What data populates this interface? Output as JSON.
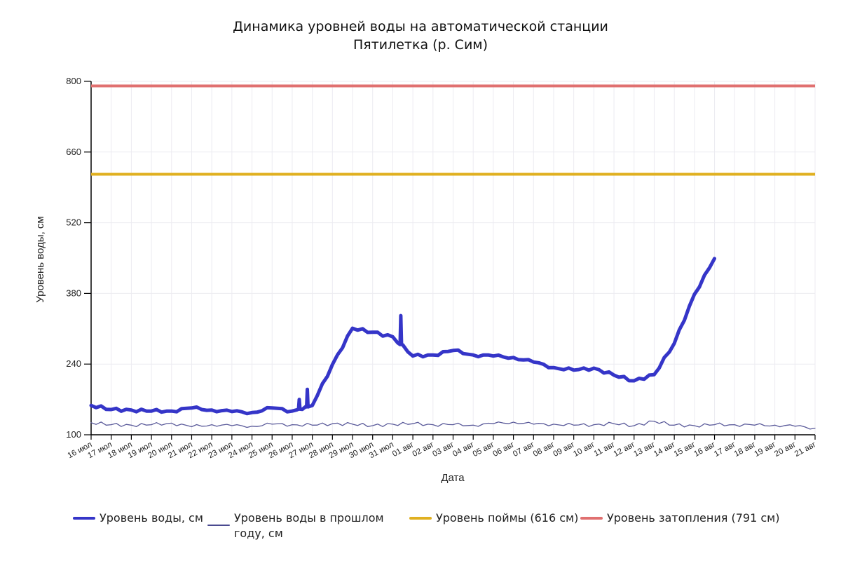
{
  "chart_data": {
    "type": "line",
    "title": "Динамика уровней воды на автоматической станции",
    "subtitle": "Пятилетка (р. Сим)",
    "xlabel": "Дата",
    "ylabel": "Уровень воды, см",
    "ylim": [
      100,
      800
    ],
    "yticks": [
      100,
      240,
      380,
      520,
      660,
      800
    ],
    "grid": true,
    "legend_position": "bottom",
    "x": [
      "16 июл",
      "17 июл",
      "18 июл",
      "19 июл",
      "20 июл",
      "21 июл",
      "22 июл",
      "23 июл",
      "24 июл",
      "25 июл",
      "26 июл",
      "27 июл",
      "28 июл",
      "29 июл",
      "30 июл",
      "31 июл",
      "01 авг",
      "02 авг",
      "03 авг",
      "04 авг",
      "05 авг",
      "06 авг",
      "07 авг",
      "08 авг",
      "09 авг",
      "10 авг",
      "11 авг",
      "12 авг",
      "13 авг",
      "14 авг",
      "15 авг",
      "16 авг",
      "17 авг",
      "18 авг",
      "19 авг",
      "20 авг",
      "21 авг"
    ],
    "series": [
      {
        "name": "Уровень воды, см",
        "color": "#3535c8",
        "width": 5,
        "values": [
          158,
          150,
          149,
          147,
          147,
          153,
          149,
          146,
          144,
          153,
          147,
          158,
          239,
          311,
          303,
          294,
          256,
          258,
          267,
          258,
          256,
          253,
          244,
          233,
          228,
          232,
          218,
          207,
          219,
          281,
          378,
          449,
          null,
          null,
          null,
          null,
          null
        ],
        "annotations": [
          {
            "x": "26 июл",
            "value": 170,
            "note": "short spike"
          },
          {
            "x": "26 июл",
            "value": 190,
            "note": "short spike"
          },
          {
            "x": "31 июл",
            "value": 336,
            "note": "short spike"
          }
        ]
      },
      {
        "name": "Уровень воды в прошлом году, см",
        "color": "#5a5a9a",
        "width": 1.3,
        "values": [
          124,
          120,
          119,
          120,
          123,
          116,
          120,
          118,
          117,
          121,
          120,
          119,
          122,
          121,
          118,
          121,
          122,
          120,
          120,
          119,
          122,
          125,
          121,
          121,
          119,
          120,
          122,
          118,
          127,
          119,
          118,
          120,
          120,
          119,
          119,
          117,
          113
        ]
      },
      {
        "name": "Уровень поймы (616 см)",
        "color": "#e0b020",
        "width": 4,
        "constant": 616
      },
      {
        "name": "Уровень затопления (791 см)",
        "color": "#e07070",
        "width": 4,
        "constant": 791
      }
    ]
  },
  "legend": [
    {
      "label": "Уровень воды, см",
      "color": "#3535c8",
      "thin": false
    },
    {
      "label": "Уровень воды в прошлом году, см",
      "color": "#4a4a90",
      "thin": true
    },
    {
      "label": "Уровень поймы (616 см)",
      "color": "#e0b020",
      "thin": false
    },
    {
      "label": "Уровень затопления (791 см)",
      "color": "#e07070",
      "thin": false
    }
  ]
}
